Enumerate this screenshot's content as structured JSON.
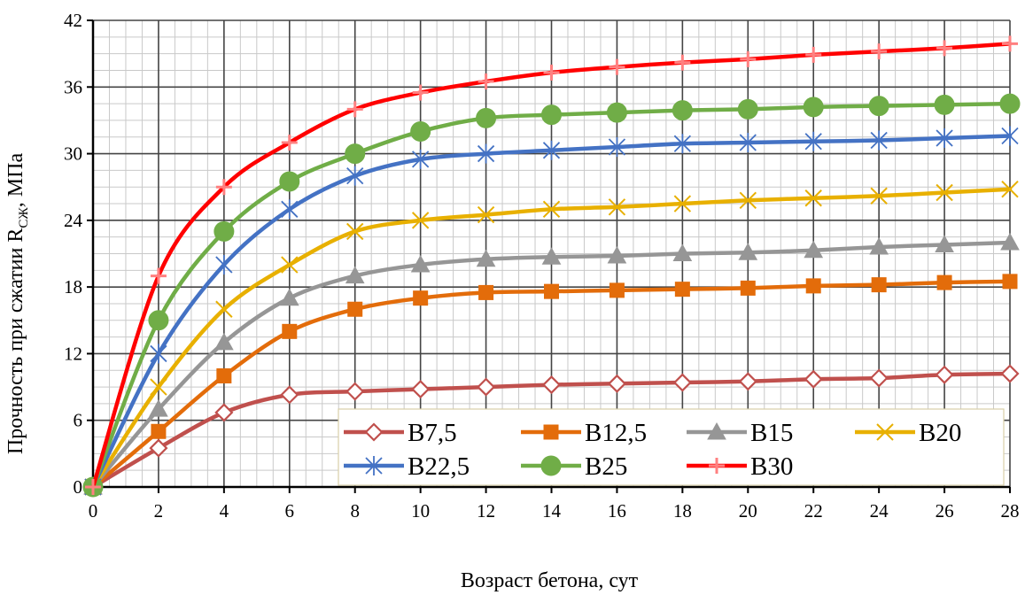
{
  "chart_data": {
    "type": "line",
    "title": "",
    "xlabel": "Возраст бетона, сут",
    "ylabel_main": "Прочность при сжатии R",
    "ylabel_sub": "СЖ",
    "ylabel_unit": ",  МПа",
    "xlim": [
      0,
      28
    ],
    "ylim": [
      0,
      42
    ],
    "x_ticks": [
      0,
      2,
      4,
      6,
      8,
      10,
      12,
      14,
      16,
      18,
      20,
      22,
      24,
      26,
      28
    ],
    "y_ticks": [
      0,
      6,
      12,
      18,
      24,
      30,
      36,
      42
    ],
    "grid": true,
    "legend_position": "bottom-right",
    "x": [
      0,
      2,
      4,
      6,
      8,
      10,
      12,
      14,
      16,
      18,
      20,
      22,
      24,
      26,
      28
    ],
    "series": [
      {
        "name": "B7,5",
        "color": "#C0504D",
        "marker": "diamond-open",
        "values": [
          0,
          3.5,
          6.7,
          8.3,
          8.6,
          8.8,
          9.0,
          9.2,
          9.3,
          9.4,
          9.5,
          9.7,
          9.8,
          10.1,
          10.2
        ]
      },
      {
        "name": "B12,5",
        "color": "#E36C0A",
        "marker": "square",
        "values": [
          0,
          5.0,
          10.0,
          14.0,
          16.0,
          17.0,
          17.5,
          17.6,
          17.7,
          17.8,
          17.9,
          18.1,
          18.2,
          18.4,
          18.5
        ]
      },
      {
        "name": "B15",
        "color": "#969696",
        "marker": "triangle",
        "values": [
          0,
          7.0,
          13.0,
          17.0,
          19.0,
          20.0,
          20.5,
          20.7,
          20.8,
          21.0,
          21.1,
          21.3,
          21.6,
          21.8,
          22.0
        ]
      },
      {
        "name": "B20",
        "color": "#E8B000",
        "marker": "x",
        "values": [
          0,
          9.0,
          16.0,
          20.0,
          23.0,
          24.0,
          24.5,
          25.0,
          25.2,
          25.5,
          25.8,
          26.0,
          26.2,
          26.5,
          26.8
        ]
      },
      {
        "name": "B22,5",
        "color": "#4472C4",
        "marker": "star",
        "values": [
          0,
          12.0,
          20.0,
          25.0,
          28.0,
          29.5,
          30.0,
          30.3,
          30.6,
          30.9,
          31.0,
          31.1,
          31.2,
          31.4,
          31.6
        ]
      },
      {
        "name": "B25",
        "color": "#70AD47",
        "marker": "circle",
        "values": [
          0,
          15.0,
          23.0,
          27.5,
          30.0,
          32.0,
          33.2,
          33.5,
          33.7,
          33.9,
          34.0,
          34.2,
          34.3,
          34.4,
          34.5
        ]
      },
      {
        "name": "B30",
        "color": "#FF0000",
        "marker": "plus",
        "values": [
          0,
          19.0,
          27.0,
          31.0,
          34.0,
          35.5,
          36.5,
          37.3,
          37.8,
          38.2,
          38.5,
          38.9,
          39.2,
          39.5,
          39.9
        ]
      }
    ]
  }
}
